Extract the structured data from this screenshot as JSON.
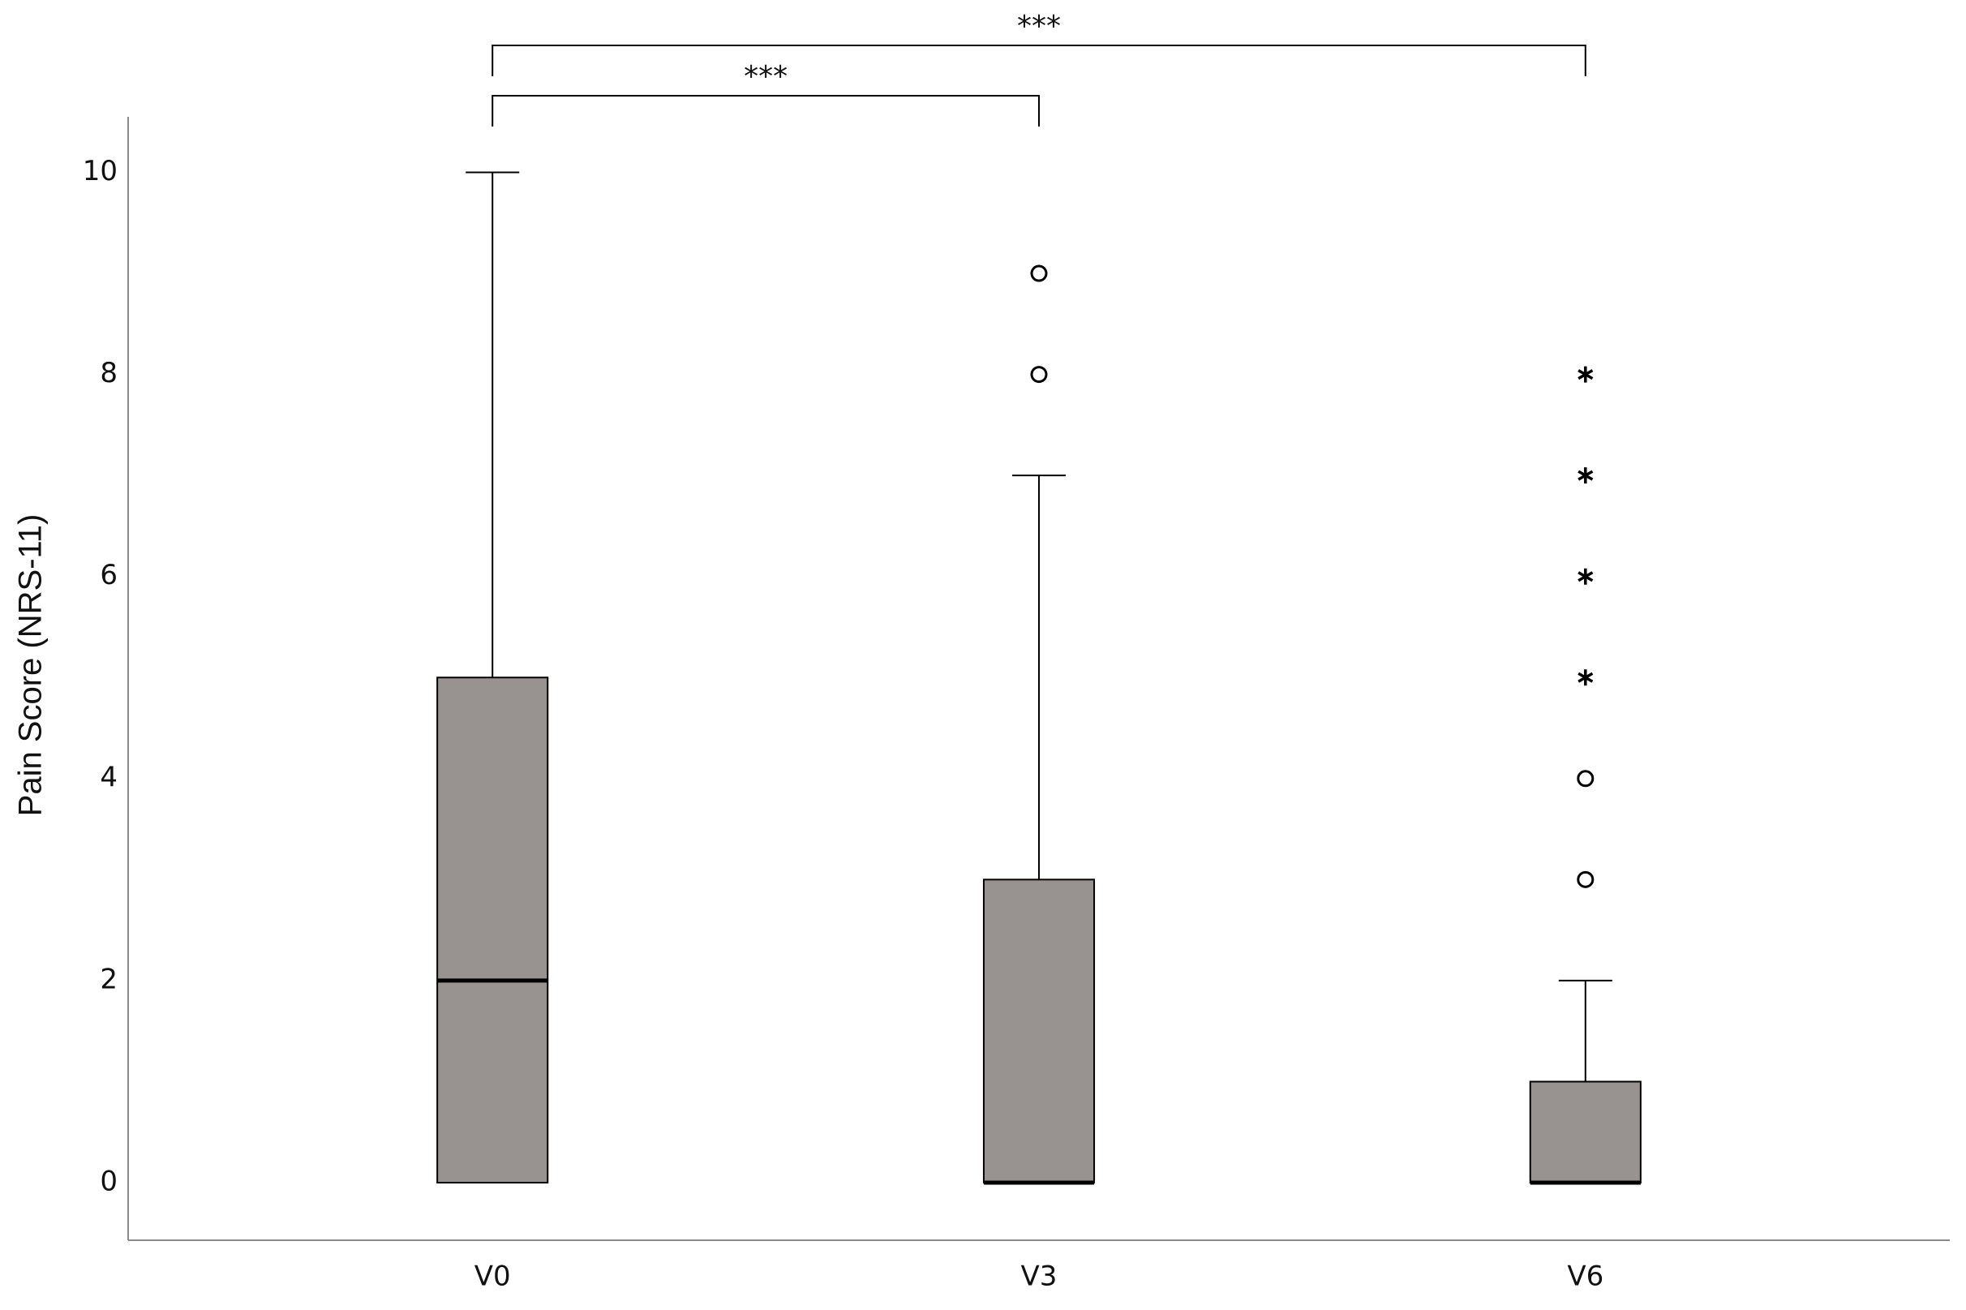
{
  "chart_data": {
    "type": "box",
    "y_label": "Pain Score (NRS-11)",
    "categories": [
      "V0",
      "V3",
      "V6"
    ],
    "boxes": [
      {
        "min": 0,
        "q1": 0,
        "median": 2,
        "q3": 5,
        "max": 10,
        "outliers": [],
        "extremes": []
      },
      {
        "min": 0,
        "q1": 0,
        "median": 0,
        "q3": 3,
        "max": 7,
        "outliers": [
          8,
          9
        ],
        "extremes": []
      },
      {
        "min": 0,
        "q1": 0,
        "median": 0,
        "q3": 1,
        "max": 2,
        "outliers": [
          3,
          4
        ],
        "extremes": [
          5,
          6,
          7,
          8
        ]
      }
    ],
    "color": "#989391",
    "ylim": [
      -0.57,
      10.55
    ],
    "yticks": [
      0,
      2,
      4,
      6,
      8,
      10
    ],
    "grid": false,
    "comparisons": [
      {
        "label": "***",
        "pair": [
          "V0",
          "V3"
        ]
      },
      {
        "label": "***",
        "pair": [
          "V0",
          "V6"
        ]
      }
    ]
  }
}
